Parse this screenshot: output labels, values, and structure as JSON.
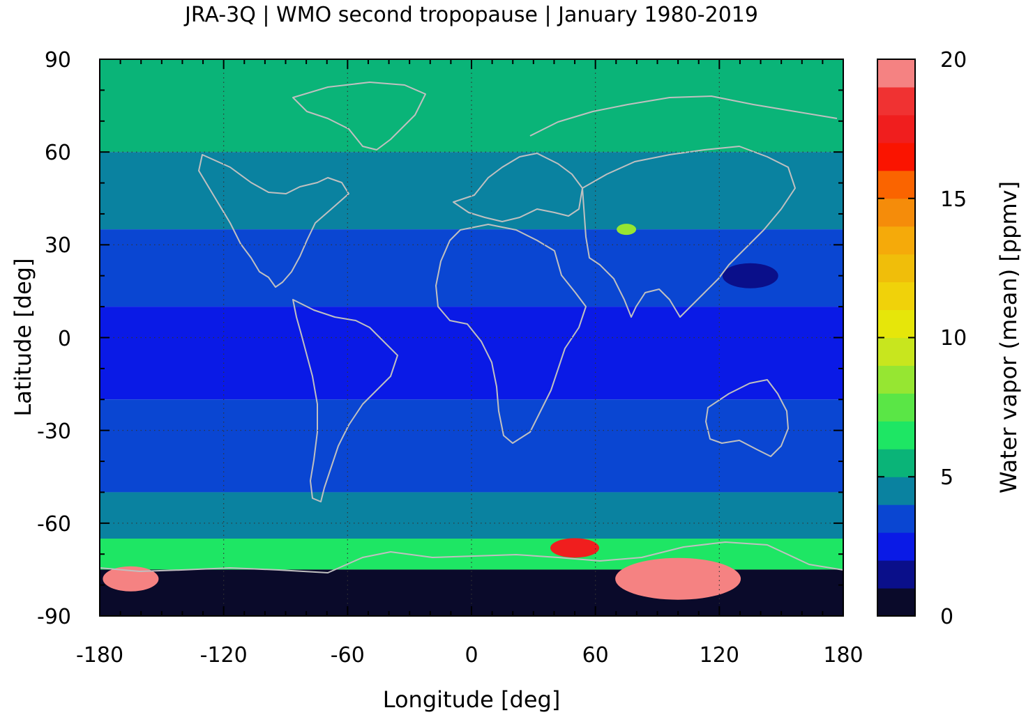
{
  "title": "JRA-3Q | WMO second tropopause | January 1980-2019",
  "xaxis": {
    "label": "Longitude [deg]",
    "range": [
      -180,
      180
    ],
    "ticks": [
      "-180",
      "-120",
      "-60",
      "0",
      "60",
      "120",
      "180"
    ],
    "tick_values": [
      -180,
      -120,
      -60,
      0,
      60,
      120,
      180
    ],
    "minor_step": 10
  },
  "yaxis": {
    "label": "Latitude [deg]",
    "range": [
      -90,
      90
    ],
    "ticks": [
      "90",
      "60",
      "30",
      "0",
      "-30",
      "-60",
      "-90"
    ],
    "tick_values": [
      90,
      60,
      30,
      0,
      -30,
      -60,
      -90
    ],
    "minor_step": 10
  },
  "grid": "dotted",
  "colorbar": {
    "label": "Water vapor (mean) [ppmv]",
    "range": [
      0,
      20
    ],
    "ticks": [
      "20",
      "15",
      "10",
      "5",
      "0"
    ],
    "tick_values": [
      20,
      15,
      10,
      5,
      0
    ],
    "step": 1,
    "colors": [
      "#0a0a2a",
      "#0a0f8a",
      "#0a1ae6",
      "#0a46d2",
      "#0a82a0",
      "#0ab478",
      "#1ee664",
      "#5ae646",
      "#96e632",
      "#c8e61e",
      "#e6e60a",
      "#f0d20a",
      "#f0be0a",
      "#f5aa0a",
      "#f58c0a",
      "#fa6400",
      "#fa1400",
      "#f01e1e",
      "#f03232",
      "#f58282",
      "#fccccc"
    ]
  },
  "chart_data": {
    "type": "heatmap",
    "title": "JRA-3Q | WMO second tropopause | January 1980-2019",
    "xlabel": "Longitude [deg]",
    "ylabel": "Latitude [deg]",
    "xlim": [
      -180,
      180
    ],
    "ylim": [
      -90,
      90
    ],
    "colorbar_label": "Water vapor (mean) [ppmv]",
    "colorbar_range": [
      0,
      20
    ],
    "zonal_bands": [
      {
        "lat_range": [
          60,
          90
        ],
        "value": 5.5
      },
      {
        "lat_range": [
          35,
          60
        ],
        "value": 4.6
      },
      {
        "lat_range": [
          10,
          35
        ],
        "value": 3.5
      },
      {
        "lat_range": [
          -20,
          10
        ],
        "value": 2.6
      },
      {
        "lat_range": [
          -50,
          -20
        ],
        "value": 3.5
      },
      {
        "lat_range": [
          -65,
          -50
        ],
        "value": 4.5
      },
      {
        "lat_range": [
          -75,
          -65
        ],
        "value": 6.5
      },
      {
        "lat_range": [
          -90,
          -75
        ],
        "value": 0.5
      }
    ],
    "features": [
      {
        "lon": 75,
        "lat": 35,
        "value": 8.5
      },
      {
        "lon": 135,
        "lat": 20,
        "value": 1.5
      },
      {
        "lon": 100,
        "lat": -78,
        "value": 19.5
      },
      {
        "lon": -165,
        "lat": -78,
        "value": 19.5
      },
      {
        "lon": 50,
        "lat": -68,
        "value": 17
      }
    ],
    "overlay": "coastlines (gray)"
  }
}
